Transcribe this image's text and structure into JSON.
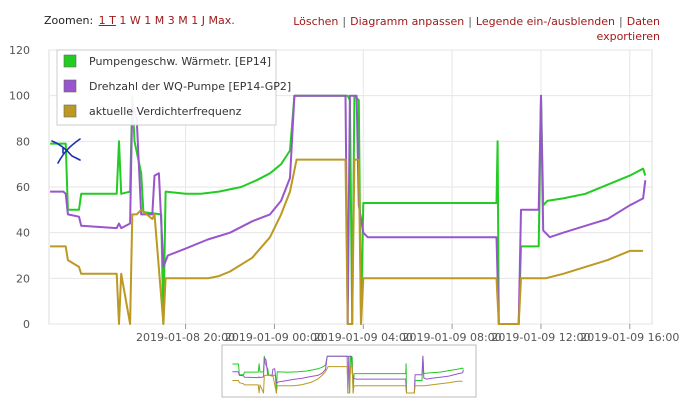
{
  "toolbar": {
    "zoom_label": "Zoomen:",
    "zoom_options": [
      "1 T",
      "1 W",
      "1 M",
      "3 M",
      "1 J",
      "Max."
    ],
    "actions": [
      "Löschen",
      "Diagramm anpassen",
      "Legende ein-/ausblenden",
      "Daten exportieren"
    ]
  },
  "chart_data": {
    "type": "line",
    "title": "",
    "xlabel": "",
    "ylabel": "",
    "ylim": [
      0,
      120
    ],
    "yticks": [
      0,
      20,
      40,
      60,
      80,
      100,
      120
    ],
    "xlim": [
      13.85,
      41.0
    ],
    "x_unit_note": "hours since 2019-01-08 00:00",
    "xticks": [
      {
        "x": 20,
        "label": "2019-01-08 20:00"
      },
      {
        "x": 24,
        "label": "2019-01-09 00:00"
      },
      {
        "x": 28,
        "label": "2019-01-09 04:00"
      },
      {
        "x": 32,
        "label": "2019-01-09 08:00"
      },
      {
        "x": 36,
        "label": "2019-01-09 12:00"
      },
      {
        "x": 40,
        "label": "2019-01-09 16:00"
      }
    ],
    "grid": true,
    "legend_position": "top-left",
    "series": [
      {
        "name": "Pumpengeschw. Wärmetr. [EP14]",
        "color": "#22cc22",
        "points": [
          [
            13.9,
            79
          ],
          [
            14.6,
            79
          ],
          [
            14.7,
            50
          ],
          [
            15.2,
            50
          ],
          [
            15.3,
            57
          ],
          [
            16.9,
            57
          ],
          [
            17.0,
            80
          ],
          [
            17.1,
            57
          ],
          [
            17.5,
            58
          ],
          [
            17.6,
            100
          ],
          [
            17.7,
            80
          ],
          [
            18.0,
            66
          ],
          [
            18.1,
            49
          ],
          [
            18.9,
            48
          ],
          [
            19.0,
            0
          ],
          [
            19.1,
            58
          ],
          [
            20.0,
            57
          ],
          [
            20.7,
            57
          ],
          [
            21.5,
            58
          ],
          [
            22.5,
            60
          ],
          [
            23.2,
            63
          ],
          [
            23.8,
            66
          ],
          [
            24.3,
            70
          ],
          [
            24.7,
            76
          ],
          [
            24.9,
            100
          ],
          [
            27.3,
            100
          ],
          [
            27.4,
            98
          ],
          [
            27.5,
            0
          ],
          [
            27.6,
            100
          ],
          [
            27.8,
            98
          ],
          [
            27.9,
            0
          ],
          [
            28.0,
            53
          ],
          [
            34.0,
            53
          ],
          [
            34.05,
            80
          ],
          [
            34.1,
            0
          ],
          [
            35.0,
            0
          ],
          [
            35.1,
            34
          ],
          [
            35.9,
            34
          ],
          [
            36.0,
            100
          ],
          [
            36.1,
            52
          ],
          [
            36.3,
            54
          ],
          [
            37.0,
            55
          ],
          [
            38.0,
            57
          ],
          [
            39.0,
            61
          ],
          [
            40.0,
            65
          ],
          [
            40.6,
            68
          ],
          [
            40.7,
            65
          ]
        ]
      },
      {
        "name": "Drehzahl der WQ-Pumpe [EP14-GP2]",
        "color": "#9955cc",
        "points": [
          [
            13.9,
            58
          ],
          [
            14.5,
            58
          ],
          [
            14.6,
            57
          ],
          [
            14.7,
            48
          ],
          [
            15.2,
            47
          ],
          [
            15.3,
            43
          ],
          [
            16.9,
            42
          ],
          [
            17.0,
            44
          ],
          [
            17.1,
            42
          ],
          [
            17.5,
            44
          ],
          [
            17.6,
            97
          ],
          [
            17.8,
            90
          ],
          [
            18.0,
            48
          ],
          [
            18.5,
            48
          ],
          [
            18.6,
            65
          ],
          [
            18.8,
            66
          ],
          [
            19.0,
            25
          ],
          [
            19.2,
            30
          ],
          [
            20.0,
            33
          ],
          [
            21.0,
            37
          ],
          [
            22.0,
            40
          ],
          [
            23.0,
            45
          ],
          [
            23.8,
            48
          ],
          [
            24.3,
            54
          ],
          [
            24.7,
            64
          ],
          [
            24.9,
            100
          ],
          [
            27.2,
            100
          ],
          [
            27.3,
            0
          ],
          [
            27.4,
            100
          ],
          [
            27.7,
            100
          ],
          [
            27.8,
            52
          ],
          [
            28.0,
            40
          ],
          [
            28.2,
            38
          ],
          [
            34.0,
            38
          ],
          [
            34.1,
            0
          ],
          [
            35.0,
            0
          ],
          [
            35.1,
            50
          ],
          [
            35.9,
            50
          ],
          [
            36.0,
            100
          ],
          [
            36.1,
            41
          ],
          [
            36.4,
            38
          ],
          [
            37.0,
            40
          ],
          [
            38.0,
            43
          ],
          [
            39.0,
            46
          ],
          [
            40.0,
            52
          ],
          [
            40.6,
            55
          ],
          [
            40.7,
            63
          ]
        ]
      },
      {
        "name": "aktuelle Verdichterfrequenz",
        "color": "#bb9922",
        "points": [
          [
            13.9,
            34
          ],
          [
            14.6,
            34
          ],
          [
            14.7,
            28
          ],
          [
            15.2,
            25
          ],
          [
            15.3,
            22
          ],
          [
            16.9,
            22
          ],
          [
            17.0,
            0
          ],
          [
            17.1,
            22
          ],
          [
            17.5,
            0
          ],
          [
            17.6,
            48
          ],
          [
            17.8,
            48
          ],
          [
            18.0,
            50
          ],
          [
            18.5,
            46
          ],
          [
            18.6,
            48
          ],
          [
            19.0,
            0
          ],
          [
            19.1,
            20
          ],
          [
            20.0,
            20
          ],
          [
            21.0,
            20
          ],
          [
            21.5,
            21
          ],
          [
            22.0,
            23
          ],
          [
            23.0,
            29
          ],
          [
            23.8,
            38
          ],
          [
            24.3,
            48
          ],
          [
            24.7,
            58
          ],
          [
            25.0,
            72
          ],
          [
            27.2,
            72
          ],
          [
            27.3,
            0
          ],
          [
            27.5,
            0
          ],
          [
            27.6,
            72
          ],
          [
            27.8,
            72
          ],
          [
            27.9,
            0
          ],
          [
            28.0,
            20
          ],
          [
            34.0,
            20
          ],
          [
            34.1,
            0
          ],
          [
            35.0,
            0
          ],
          [
            35.1,
            20
          ],
          [
            36.0,
            20
          ],
          [
            36.2,
            20
          ],
          [
            37.0,
            22
          ],
          [
            38.0,
            25
          ],
          [
            39.0,
            28
          ],
          [
            40.0,
            32
          ],
          [
            40.6,
            32
          ]
        ]
      }
    ]
  }
}
